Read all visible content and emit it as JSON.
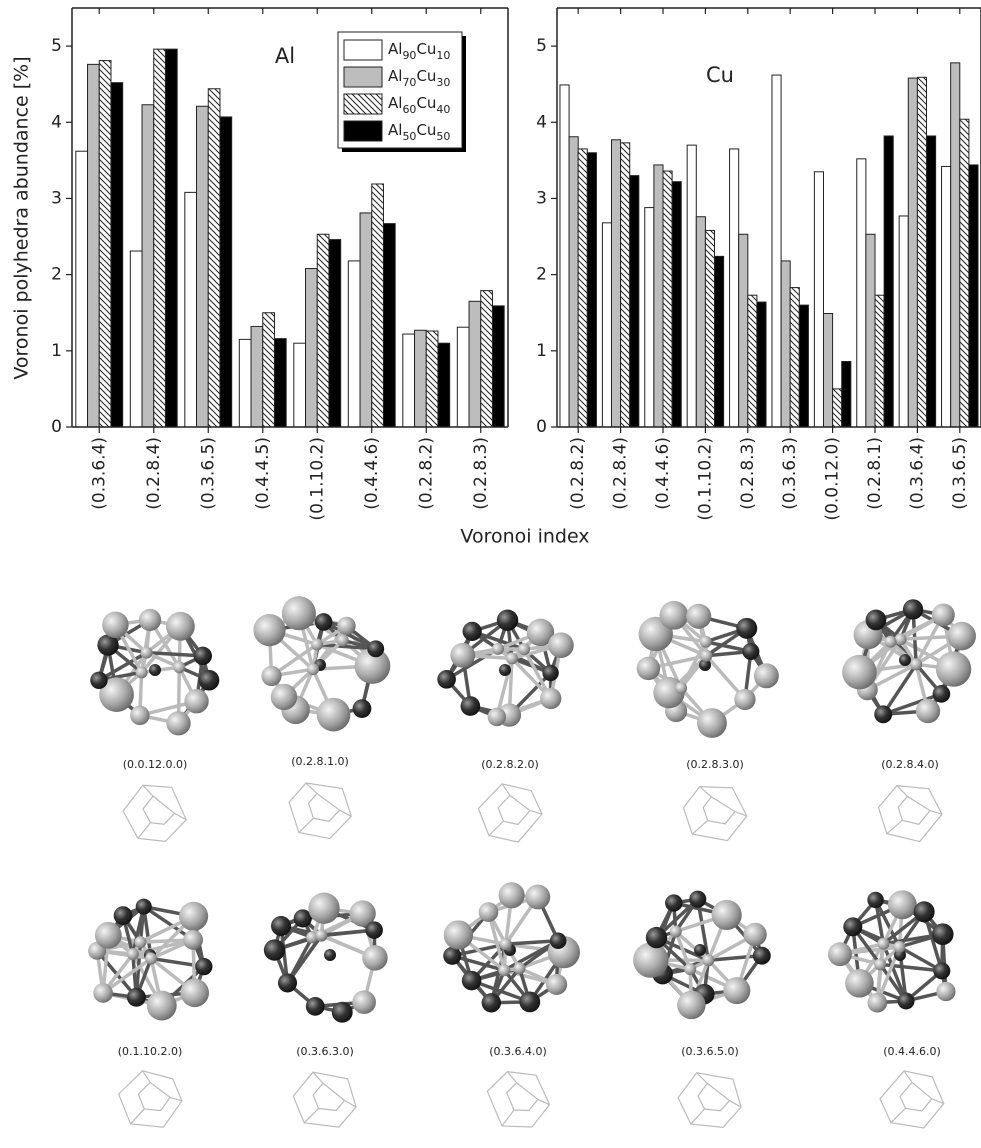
{
  "figure": {
    "ylabel": "Voronoi polyhedra abundance [%]",
    "xlabel": "Voronoi index"
  },
  "chart_data": [
    {
      "type": "bar",
      "title": "Al",
      "legend": "upper right",
      "categories": [
        "(0.3.6.4)",
        "(0.2.8.4)",
        "(0.3.6.5)",
        "(0.4.4.5)",
        "(0.1.10.2)",
        "(0.4.4.6)",
        "(0.2.8.2)",
        "(0.2.8.3)"
      ],
      "series": [
        {
          "name": "Al90Cu10",
          "color": "#ffffff",
          "values": [
            3.62,
            2.31,
            3.08,
            1.15,
            1.1,
            2.18,
            1.22,
            1.31
          ]
        },
        {
          "name": "Al70Cu30",
          "color": "#bdbdbd",
          "values": [
            4.76,
            4.23,
            4.21,
            1.32,
            2.08,
            2.81,
            1.27,
            1.65
          ]
        },
        {
          "name": "Al60Cu40",
          "color": "#ffffff",
          "hatch": true,
          "values": [
            4.81,
            4.96,
            4.44,
            1.5,
            2.53,
            3.19,
            1.26,
            1.79
          ]
        },
        {
          "name": "Al50Cu50",
          "color": "#000000",
          "values": [
            4.52,
            4.96,
            4.07,
            1.16,
            2.46,
            2.67,
            1.1,
            1.59
          ]
        }
      ],
      "ylim": [
        0,
        5.5
      ],
      "yticks": [
        0,
        1,
        2,
        3,
        4,
        5
      ]
    },
    {
      "type": "bar",
      "title": "Cu",
      "categories": [
        "(0.2.8.2)",
        "(0.2.8.4)",
        "(0.4.4.6)",
        "(0.1.10.2)",
        "(0.2.8.3)",
        "(0.3.6.3)",
        "(0.0.12.0)",
        "(0.2.8.1)",
        "(0.3.6.4)",
        "(0.3.6.5)"
      ],
      "series": [
        {
          "color": "#ffffff",
          "values": [
            4.49,
            2.68,
            2.88,
            3.7,
            3.65,
            4.62,
            3.35,
            3.52,
            2.77,
            3.42
          ]
        },
        {
          "color": "#bdbdbd",
          "values": [
            3.81,
            3.77,
            3.44,
            2.76,
            2.53,
            2.18,
            1.49,
            2.53,
            4.58,
            4.78
          ]
        },
        {
          "color": "#ffffff",
          "hatch": true,
          "values": [
            3.65,
            3.73,
            3.36,
            2.58,
            1.73,
            1.83,
            0.5,
            1.73,
            4.59,
            4.04
          ]
        },
        {
          "color": "#000000",
          "values": [
            3.6,
            3.3,
            3.22,
            2.24,
            1.64,
            1.6,
            0.86,
            3.82,
            3.82,
            3.44
          ]
        }
      ],
      "ylim": [
        0,
        5.5
      ],
      "yticks": [
        0,
        1,
        2,
        3,
        4,
        5
      ]
    }
  ],
  "polyhedra": [
    {
      "label": "(0.0.12.0.0)"
    },
    {
      "label": "(0.2.8.1.0)"
    },
    {
      "label": "(0.2.8.2.0)"
    },
    {
      "label": "(0.2.8.3.0)"
    },
    {
      "label": "(0.2.8.4.0)"
    },
    {
      "label": "(0.1.10.2.0)"
    },
    {
      "label": "(0.3.6.3.0)"
    },
    {
      "label": "(0.3.6.4.0)"
    },
    {
      "label": "(0.3.6.5.0)"
    },
    {
      "label": "(0.4.4.6.0)"
    }
  ]
}
